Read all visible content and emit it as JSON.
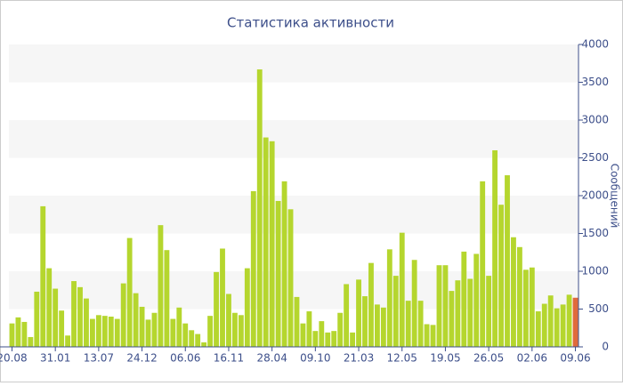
{
  "chart_data": {
    "type": "bar",
    "title": "Статистика активности",
    "y_label": "Сообщений",
    "categories": [
      "20.08",
      null,
      null,
      null,
      null,
      null,
      null,
      "31.01",
      null,
      null,
      null,
      null,
      null,
      null,
      "13.07",
      null,
      null,
      null,
      null,
      null,
      null,
      "24.12",
      null,
      null,
      null,
      null,
      null,
      null,
      "06.06",
      null,
      null,
      null,
      null,
      null,
      null,
      "16.11",
      null,
      null,
      null,
      null,
      null,
      null,
      "28.04",
      null,
      null,
      null,
      null,
      null,
      null,
      "09.10",
      null,
      null,
      null,
      null,
      null,
      null,
      "21.03",
      null,
      null,
      null,
      null,
      null,
      null,
      "12.05",
      null,
      null,
      null,
      null,
      null,
      null,
      "19.05",
      null,
      null,
      null,
      null,
      null,
      null,
      "26.05",
      null,
      null,
      null,
      null,
      null,
      null,
      "02.06",
      null,
      null,
      null,
      null,
      null,
      null,
      "09.06"
    ],
    "values": [
      310,
      390,
      330,
      130,
      730,
      1860,
      1040,
      770,
      480,
      150,
      870,
      790,
      640,
      370,
      420,
      410,
      400,
      370,
      840,
      1440,
      710,
      530,
      360,
      450,
      1610,
      1280,
      370,
      520,
      310,
      220,
      170,
      60,
      410,
      990,
      1300,
      700,
      450,
      420,
      1040,
      2060,
      3670,
      2770,
      2720,
      1930,
      2190,
      1820,
      660,
      310,
      470,
      210,
      340,
      190,
      210,
      450,
      830,
      190,
      890,
      670,
      1110,
      560,
      520,
      1290,
      940,
      1510,
      610,
      1150,
      610,
      300,
      290,
      1080,
      1080,
      740,
      880,
      1260,
      900,
      1230,
      2190,
      940,
      2600,
      1880,
      2270,
      1450,
      1320,
      1020,
      1050,
      470,
      570,
      680,
      510,
      560,
      690,
      650
    ],
    "color": "#b5d62e",
    "last_color": "#e06a3c",
    "ylim": [
      0,
      4000
    ],
    "yticks": [
      0,
      500,
      1000,
      1500,
      2000,
      2500,
      3000,
      3500,
      4000
    ],
    "grid": true,
    "y_axis_side": "right"
  }
}
